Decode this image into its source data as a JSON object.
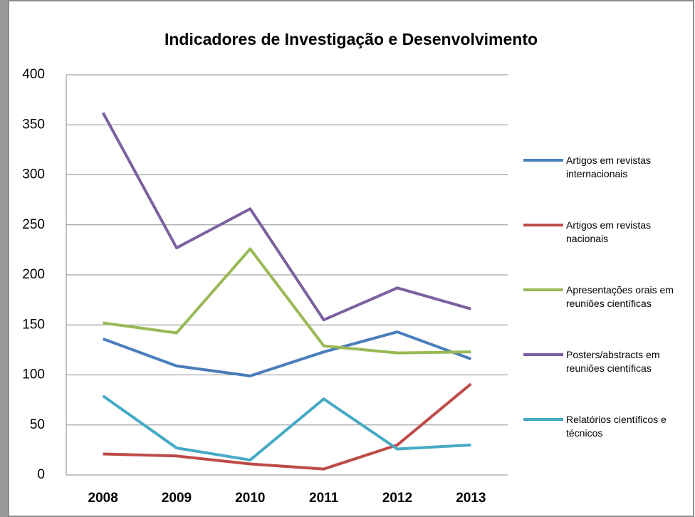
{
  "chart_data": {
    "type": "line",
    "title": "Indicadores de Investigação e Desenvolvimento",
    "categories": [
      "2008",
      "2009",
      "2010",
      "2011",
      "2012",
      "2013"
    ],
    "series": [
      {
        "name": "Artigos em revistas internacionais",
        "color": "#4a7ebb",
        "values": [
          136,
          109,
          99,
          123,
          143,
          116
        ]
      },
      {
        "name": "Artigos em revistas nacionais",
        "color": "#be4b48",
        "values": [
          21,
          19,
          11,
          6,
          30,
          91
        ]
      },
      {
        "name": "Apresentações orais em reuniões científicas",
        "color": "#98b954",
        "values": [
          152,
          142,
          226,
          129,
          122,
          123
        ]
      },
      {
        "name": "Posters/abstracts em reuniões científicas",
        "color": "#7d60a0",
        "values": [
          362,
          227,
          266,
          155,
          187,
          166
        ]
      },
      {
        "name": "Relatórios científicos e técnicos",
        "color": "#46aac5",
        "values": [
          79,
          27,
          15,
          76,
          26,
          30
        ]
      }
    ],
    "ylim": [
      0,
      400
    ],
    "yticks": [
      0,
      50,
      100,
      150,
      200,
      250,
      300,
      350,
      400
    ],
    "grid": true,
    "legend": "right"
  }
}
